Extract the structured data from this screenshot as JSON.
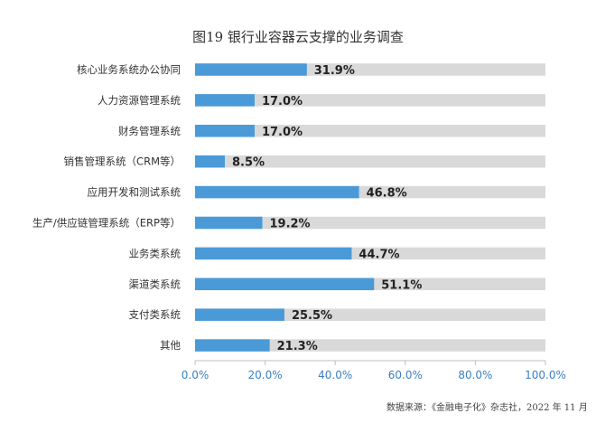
{
  "chart_data": {
    "type": "bar",
    "orientation": "horizontal",
    "title": "图19 银行业容器云支撑的业务调查",
    "categories": [
      "核心业务系统办公协同",
      "人力资源管理系统",
      "财务管理系统",
      "销售管理系统（CRM等）",
      "应用开发和测试系统",
      "生产/供应链管理系统（ERP等）",
      "业务类系统",
      "渠道类系统",
      "支付类系统",
      "其他"
    ],
    "values": [
      31.9,
      17.0,
      17.0,
      8.5,
      46.8,
      19.2,
      44.7,
      51.1,
      25.5,
      21.3
    ],
    "value_labels": [
      "31.9%",
      "17.0%",
      "17.0%",
      "8.5%",
      "46.8%",
      "19.2%",
      "44.7%",
      "51.1%",
      "25.5%",
      "21.3%"
    ],
    "xlim": [
      0,
      100
    ],
    "xticks": [
      0,
      20,
      40,
      60,
      80,
      100
    ],
    "xtick_labels": [
      "0.0%",
      "20.0%",
      "40.0%",
      "60.0%",
      "80.0%",
      "100.0%"
    ],
    "xlabel": "",
    "ylabel": "",
    "grid": false,
    "legend": "none",
    "colors": {
      "bar": "#4a9ad8",
      "track": "#d9d9d9",
      "axis": "#bfbfbf",
      "label": "#333333",
      "value_label": "#222222",
      "tick": "#3a7fc4"
    }
  },
  "source_note": "数据来源：《金融电子化》杂志社，2022 年 11 月"
}
